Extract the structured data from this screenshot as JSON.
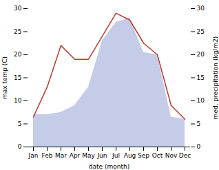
{
  "chart_data": {
    "type": "line",
    "xlabel": "date (month)",
    "ylabel": "max temp (C)",
    "y2label": "med. precipitation (kg/m2)",
    "categories": [
      "Jan",
      "Feb",
      "Mar",
      "Apr",
      "May",
      "Jun",
      "Jul",
      "Aug",
      "Sep",
      "Oct",
      "Nov",
      "Dec"
    ],
    "series": [
      {
        "type": "area",
        "color": "#c5cce8",
        "axis": "y2",
        "values": [
          7.0,
          7.0,
          7.5,
          9.0,
          13.0,
          23.0,
          27.0,
          28.0,
          20.5,
          20.0,
          6.5,
          6.0
        ]
      },
      {
        "type": "line",
        "color": "#c0392b",
        "values": [
          6.5,
          13.0,
          22.0,
          19.0,
          19.0,
          24.0,
          29.0,
          27.5,
          22.5,
          20.0,
          9.0,
          6.0
        ]
      }
    ],
    "ylim": [
      0,
      30
    ],
    "yticks": [
      0,
      5,
      10,
      15,
      20,
      25,
      30
    ],
    "y2lim": [
      0,
      30
    ],
    "y2ticks": [
      0,
      5,
      10,
      15,
      20,
      25,
      30
    ]
  }
}
